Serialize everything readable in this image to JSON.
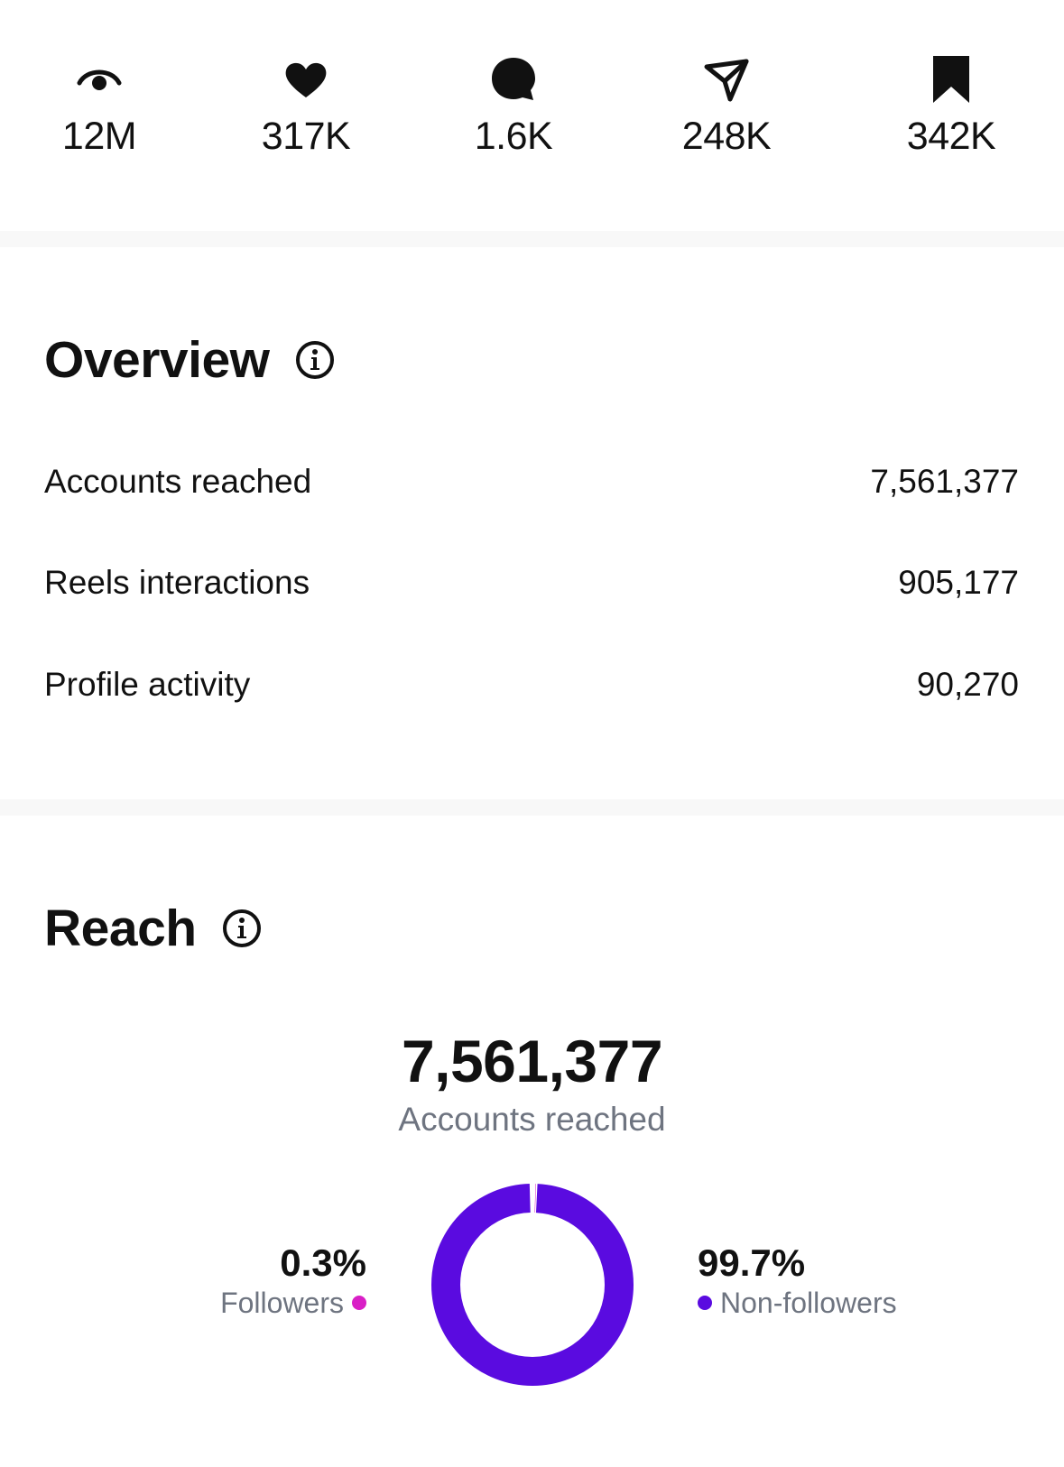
{
  "stats": [
    {
      "icon": "eye-icon",
      "value": "12M"
    },
    {
      "icon": "heart-icon",
      "value": "317K"
    },
    {
      "icon": "comment-icon",
      "value": "1.6K"
    },
    {
      "icon": "share-icon",
      "value": "248K"
    },
    {
      "icon": "bookmark-icon",
      "value": "342K"
    }
  ],
  "overview": {
    "title": "Overview",
    "rows": [
      {
        "label": "Accounts reached",
        "value": "7,561,377"
      },
      {
        "label": "Reels interactions",
        "value": "905,177"
      },
      {
        "label": "Profile activity",
        "value": "90,270"
      }
    ]
  },
  "reach": {
    "title": "Reach",
    "total": "7,561,377",
    "total_label": "Accounts reached",
    "followers": {
      "percent": "0.3%",
      "label": "Followers",
      "color": "#d91fc6",
      "fraction": 0.003
    },
    "non_followers": {
      "percent": "99.7%",
      "label": "Non-followers",
      "color": "#5a0be0",
      "fraction": 0.997
    }
  }
}
